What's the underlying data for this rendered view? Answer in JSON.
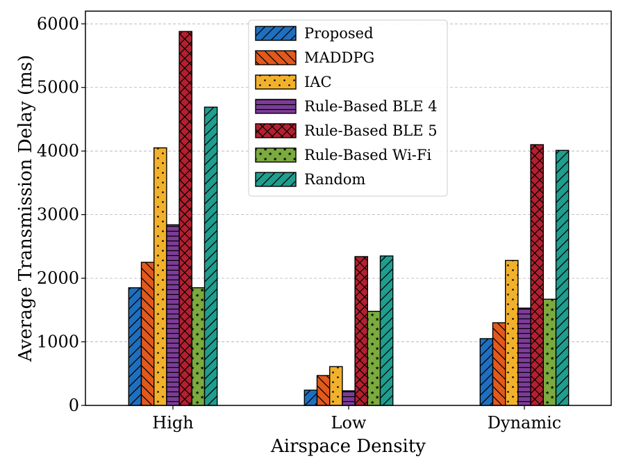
{
  "chart_data": {
    "type": "bar",
    "title": "",
    "xlabel": "Airspace Density",
    "ylabel": "Average Transmission Delay (ms)",
    "categories": [
      "High",
      "Low",
      "Dynamic"
    ],
    "ylim": [
      0,
      6200
    ],
    "yticks": [
      0,
      1000,
      2000,
      3000,
      4000,
      5000,
      6000
    ],
    "grid": "horizontal dashed",
    "legend_position": "top-center",
    "series": [
      {
        "name": "Proposed",
        "color": "#1f6fbf",
        "pattern": "diag-fwd",
        "values": [
          1850,
          240,
          1050
        ]
      },
      {
        "name": "MADDPG",
        "color": "#e2591c",
        "pattern": "diag-back",
        "values": [
          2250,
          470,
          1300
        ]
      },
      {
        "name": "IAC",
        "color": "#f2b12b",
        "pattern": "dots",
        "values": [
          4050,
          610,
          2280
        ]
      },
      {
        "name": "Rule-Based BLE 4",
        "color": "#7d3c98",
        "pattern": "hlines",
        "values": [
          2840,
          230,
          1530
        ]
      },
      {
        "name": "Rule-Based BLE 5",
        "color": "#b3202f",
        "pattern": "cross",
        "values": [
          5880,
          2340,
          4100
        ]
      },
      {
        "name": "Rule-Based Wi-Fi",
        "color": "#7bab3e",
        "pattern": "stars",
        "values": [
          1850,
          1480,
          1670
        ]
      },
      {
        "name": "Random",
        "color": "#1f9d8e",
        "pattern": "diag-fwd",
        "values": [
          4690,
          2350,
          4010
        ]
      }
    ]
  }
}
